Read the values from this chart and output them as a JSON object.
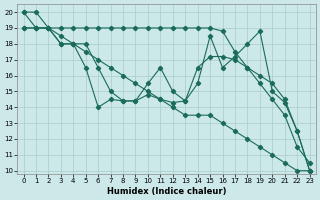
{
  "xlabel": "Humidex (Indice chaleur)",
  "background_color": "#cce8e8",
  "grid_color": "#aacccc",
  "line_color": "#1a6b5a",
  "xlim": [
    -0.5,
    23.5
  ],
  "ylim": [
    9.8,
    20.5
  ],
  "yticks": [
    10,
    11,
    12,
    13,
    14,
    15,
    16,
    17,
    18,
    19,
    20
  ],
  "xticks": [
    0,
    1,
    2,
    3,
    4,
    5,
    6,
    7,
    8,
    9,
    10,
    11,
    12,
    13,
    14,
    15,
    16,
    17,
    18,
    19,
    20,
    21,
    22,
    23
  ],
  "series": [
    [
      20.0,
      20.0,
      19.0,
      18.0,
      18.0,
      16.5,
      14.0,
      14.5,
      14.4,
      14.4,
      14.8,
      14.5,
      14.3,
      14.4,
      15.5,
      18.5,
      16.5,
      17.2,
      18.0,
      18.8,
      15.0,
      14.3,
      12.5,
      10.0
    ],
    [
      20.0,
      19.0,
      19.0,
      18.0,
      18.0,
      18.0,
      16.5,
      15.0,
      14.4,
      14.4,
      15.5,
      16.5,
      15.0,
      14.4,
      16.5,
      17.2,
      17.2,
      17.0,
      16.5,
      16.0,
      15.5,
      14.5,
      12.5,
      10.0
    ],
    [
      19.0,
      19.0,
      19.0,
      19.0,
      19.0,
      19.0,
      19.0,
      19.0,
      19.0,
      19.0,
      19.0,
      19.0,
      19.0,
      19.0,
      19.0,
      19.0,
      18.8,
      17.5,
      16.5,
      15.5,
      14.5,
      13.5,
      11.5,
      10.5
    ],
    [
      19.0,
      19.0,
      19.0,
      18.5,
      18.0,
      17.5,
      17.0,
      16.5,
      16.0,
      15.5,
      15.0,
      14.5,
      14.0,
      13.5,
      13.5,
      13.5,
      13.0,
      12.5,
      12.0,
      11.5,
      11.0,
      10.5,
      10.0,
      10.0
    ]
  ]
}
